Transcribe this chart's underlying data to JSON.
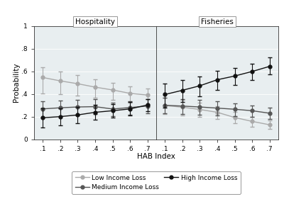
{
  "hosp_x": [
    1,
    2,
    3,
    4,
    5,
    6,
    7
  ],
  "hosp_low_y": [
    0.545,
    0.515,
    0.49,
    0.46,
    0.435,
    0.405,
    0.39
  ],
  "hosp_low_yerr_lo": [
    0.14,
    0.115,
    0.105,
    0.095,
    0.09,
    0.082,
    0.078
  ],
  "hosp_low_yerr_hi": [
    0.092,
    0.083,
    0.075,
    0.07,
    0.065,
    0.06,
    0.058
  ],
  "hosp_med_y": [
    0.268,
    0.278,
    0.285,
    0.288,
    0.267,
    0.28,
    0.293
  ],
  "hosp_med_yerr_lo": [
    0.075,
    0.072,
    0.072,
    0.068,
    0.063,
    0.063,
    0.063
  ],
  "hosp_med_yerr_hi": [
    0.068,
    0.065,
    0.063,
    0.063,
    0.058,
    0.058,
    0.058
  ],
  "hosp_high_y": [
    0.19,
    0.2,
    0.215,
    0.238,
    0.252,
    0.268,
    0.303
  ],
  "hosp_high_yerr_lo": [
    0.088,
    0.078,
    0.073,
    0.068,
    0.063,
    0.058,
    0.058
  ],
  "hosp_high_yerr_hi": [
    0.083,
    0.073,
    0.068,
    0.063,
    0.058,
    0.058,
    0.053
  ],
  "fish_x": [
    1,
    2,
    3,
    4,
    5,
    6,
    7
  ],
  "fish_low_y": [
    0.298,
    0.283,
    0.263,
    0.238,
    0.192,
    0.158,
    0.128
  ],
  "fish_low_yerr_lo": [
    0.078,
    0.073,
    0.063,
    0.058,
    0.053,
    0.048,
    0.038
  ],
  "fish_low_yerr_hi": [
    0.068,
    0.066,
    0.058,
    0.053,
    0.048,
    0.043,
    0.038
  ],
  "fish_med_y": [
    0.3,
    0.293,
    0.285,
    0.275,
    0.265,
    0.252,
    0.23
  ],
  "fish_med_yerr_lo": [
    0.073,
    0.068,
    0.066,
    0.063,
    0.058,
    0.053,
    0.053
  ],
  "fish_med_yerr_hi": [
    0.068,
    0.063,
    0.061,
    0.058,
    0.053,
    0.048,
    0.048
  ],
  "fish_high_y": [
    0.395,
    0.432,
    0.472,
    0.525,
    0.558,
    0.598,
    0.643
  ],
  "fish_high_yerr_lo": [
    0.113,
    0.103,
    0.093,
    0.088,
    0.078,
    0.073,
    0.073
  ],
  "fish_high_yerr_hi": [
    0.098,
    0.093,
    0.083,
    0.078,
    0.07,
    0.066,
    0.078
  ],
  "color_low": "#aaaaaa",
  "color_med": "#555555",
  "color_high": "#111111",
  "marker": "o",
  "markersize": 3.5,
  "linewidth": 1.0,
  "capsize": 2.5,
  "elinewidth": 0.8,
  "ylabel": "Probability",
  "xlabel": "HAB Index",
  "ylim": [
    0,
    1.0
  ],
  "yticks": [
    0,
    0.2,
    0.4,
    0.6,
    0.8,
    1.0
  ],
  "ytick_labels": [
    "0",
    ".2",
    ".4",
    ".6",
    ".8",
    "1"
  ],
  "xtick_labels": [
    ".1",
    ".2",
    ".3",
    ".4",
    ".5",
    ".6",
    ".7"
  ],
  "panel_left_title": "Hospitality",
  "panel_right_title": "Fisheries",
  "legend_labels": [
    "Low Income Loss",
    "Medium Income Loss",
    "High Income Loss"
  ],
  "bg_color": "#ffffff",
  "plot_bg": "#e8eef0"
}
